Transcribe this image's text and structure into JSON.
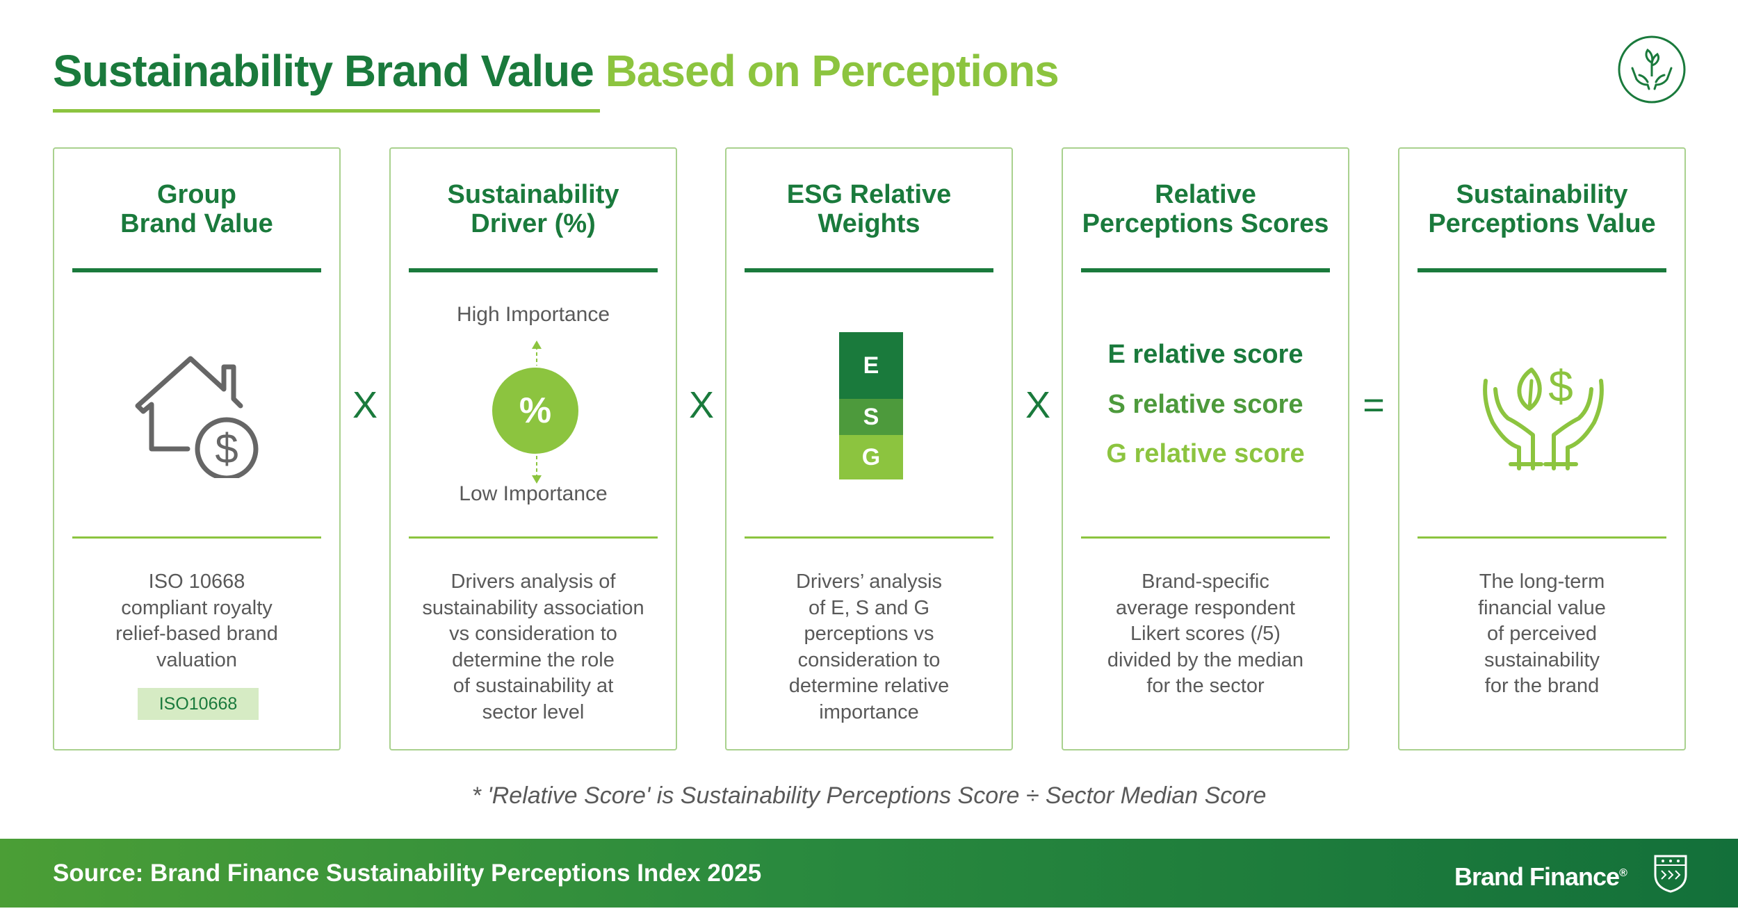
{
  "header": {
    "title_part1": "Sustainability Brand Value",
    "title_part2": "Based on Perceptions",
    "icon": "hands-plant-circle-icon"
  },
  "colors": {
    "dark_green": "#1a7a3c",
    "mid_green": "#4d9a3c",
    "light_green": "#8cc43f",
    "card_border": "#a9d18e",
    "text_gray": "#595959"
  },
  "cards": [
    {
      "title": [
        "Group",
        "Brand Value"
      ],
      "icon": "house-dollar-icon",
      "description": [
        "ISO 10668",
        "compliant royalty",
        "relief-based brand",
        "valuation"
      ],
      "badge": "ISO10668"
    },
    {
      "title": [
        "Sustainability",
        "Driver (%)"
      ],
      "high_label": "High Importance",
      "low_label": "Low Importance",
      "symbol": "%",
      "description": [
        "Drivers analysis of",
        "sustainability association",
        "vs consideration to",
        "determine the role",
        "of sustainability at",
        "sector level"
      ]
    },
    {
      "title": [
        "ESG Relative",
        "Weights"
      ],
      "bars": [
        "E",
        "S",
        "G"
      ],
      "description": [
        "Drivers’ analysis",
        "of E, S and G",
        "perceptions vs",
        "consideration to",
        "determine relative",
        "importance"
      ]
    },
    {
      "title": [
        "Relative",
        "Perceptions Scores"
      ],
      "scores": [
        "E relative score",
        "S relative score",
        "G relative score"
      ],
      "description": [
        "Brand-specific",
        "average respondent",
        "Likert scores (/5)",
        "divided by the median",
        "for the sector"
      ]
    },
    {
      "title": [
        "Sustainability",
        "Perceptions Value"
      ],
      "icon": "hands-plant-dollar-icon",
      "description": [
        "The long-term",
        "financial value",
        "of perceived",
        "sustainability",
        "for the brand"
      ]
    }
  ],
  "operators": [
    "X",
    "X",
    "X",
    "="
  ],
  "footnote": "* 'Relative Score' is Sustainability Perceptions Score ÷ Sector Median Score",
  "footer": {
    "source": "Source: Brand Finance Sustainability Perceptions Index 2025",
    "logo": "Brand Finance",
    "logo_mark": "®",
    "crest": "crest-icon"
  }
}
